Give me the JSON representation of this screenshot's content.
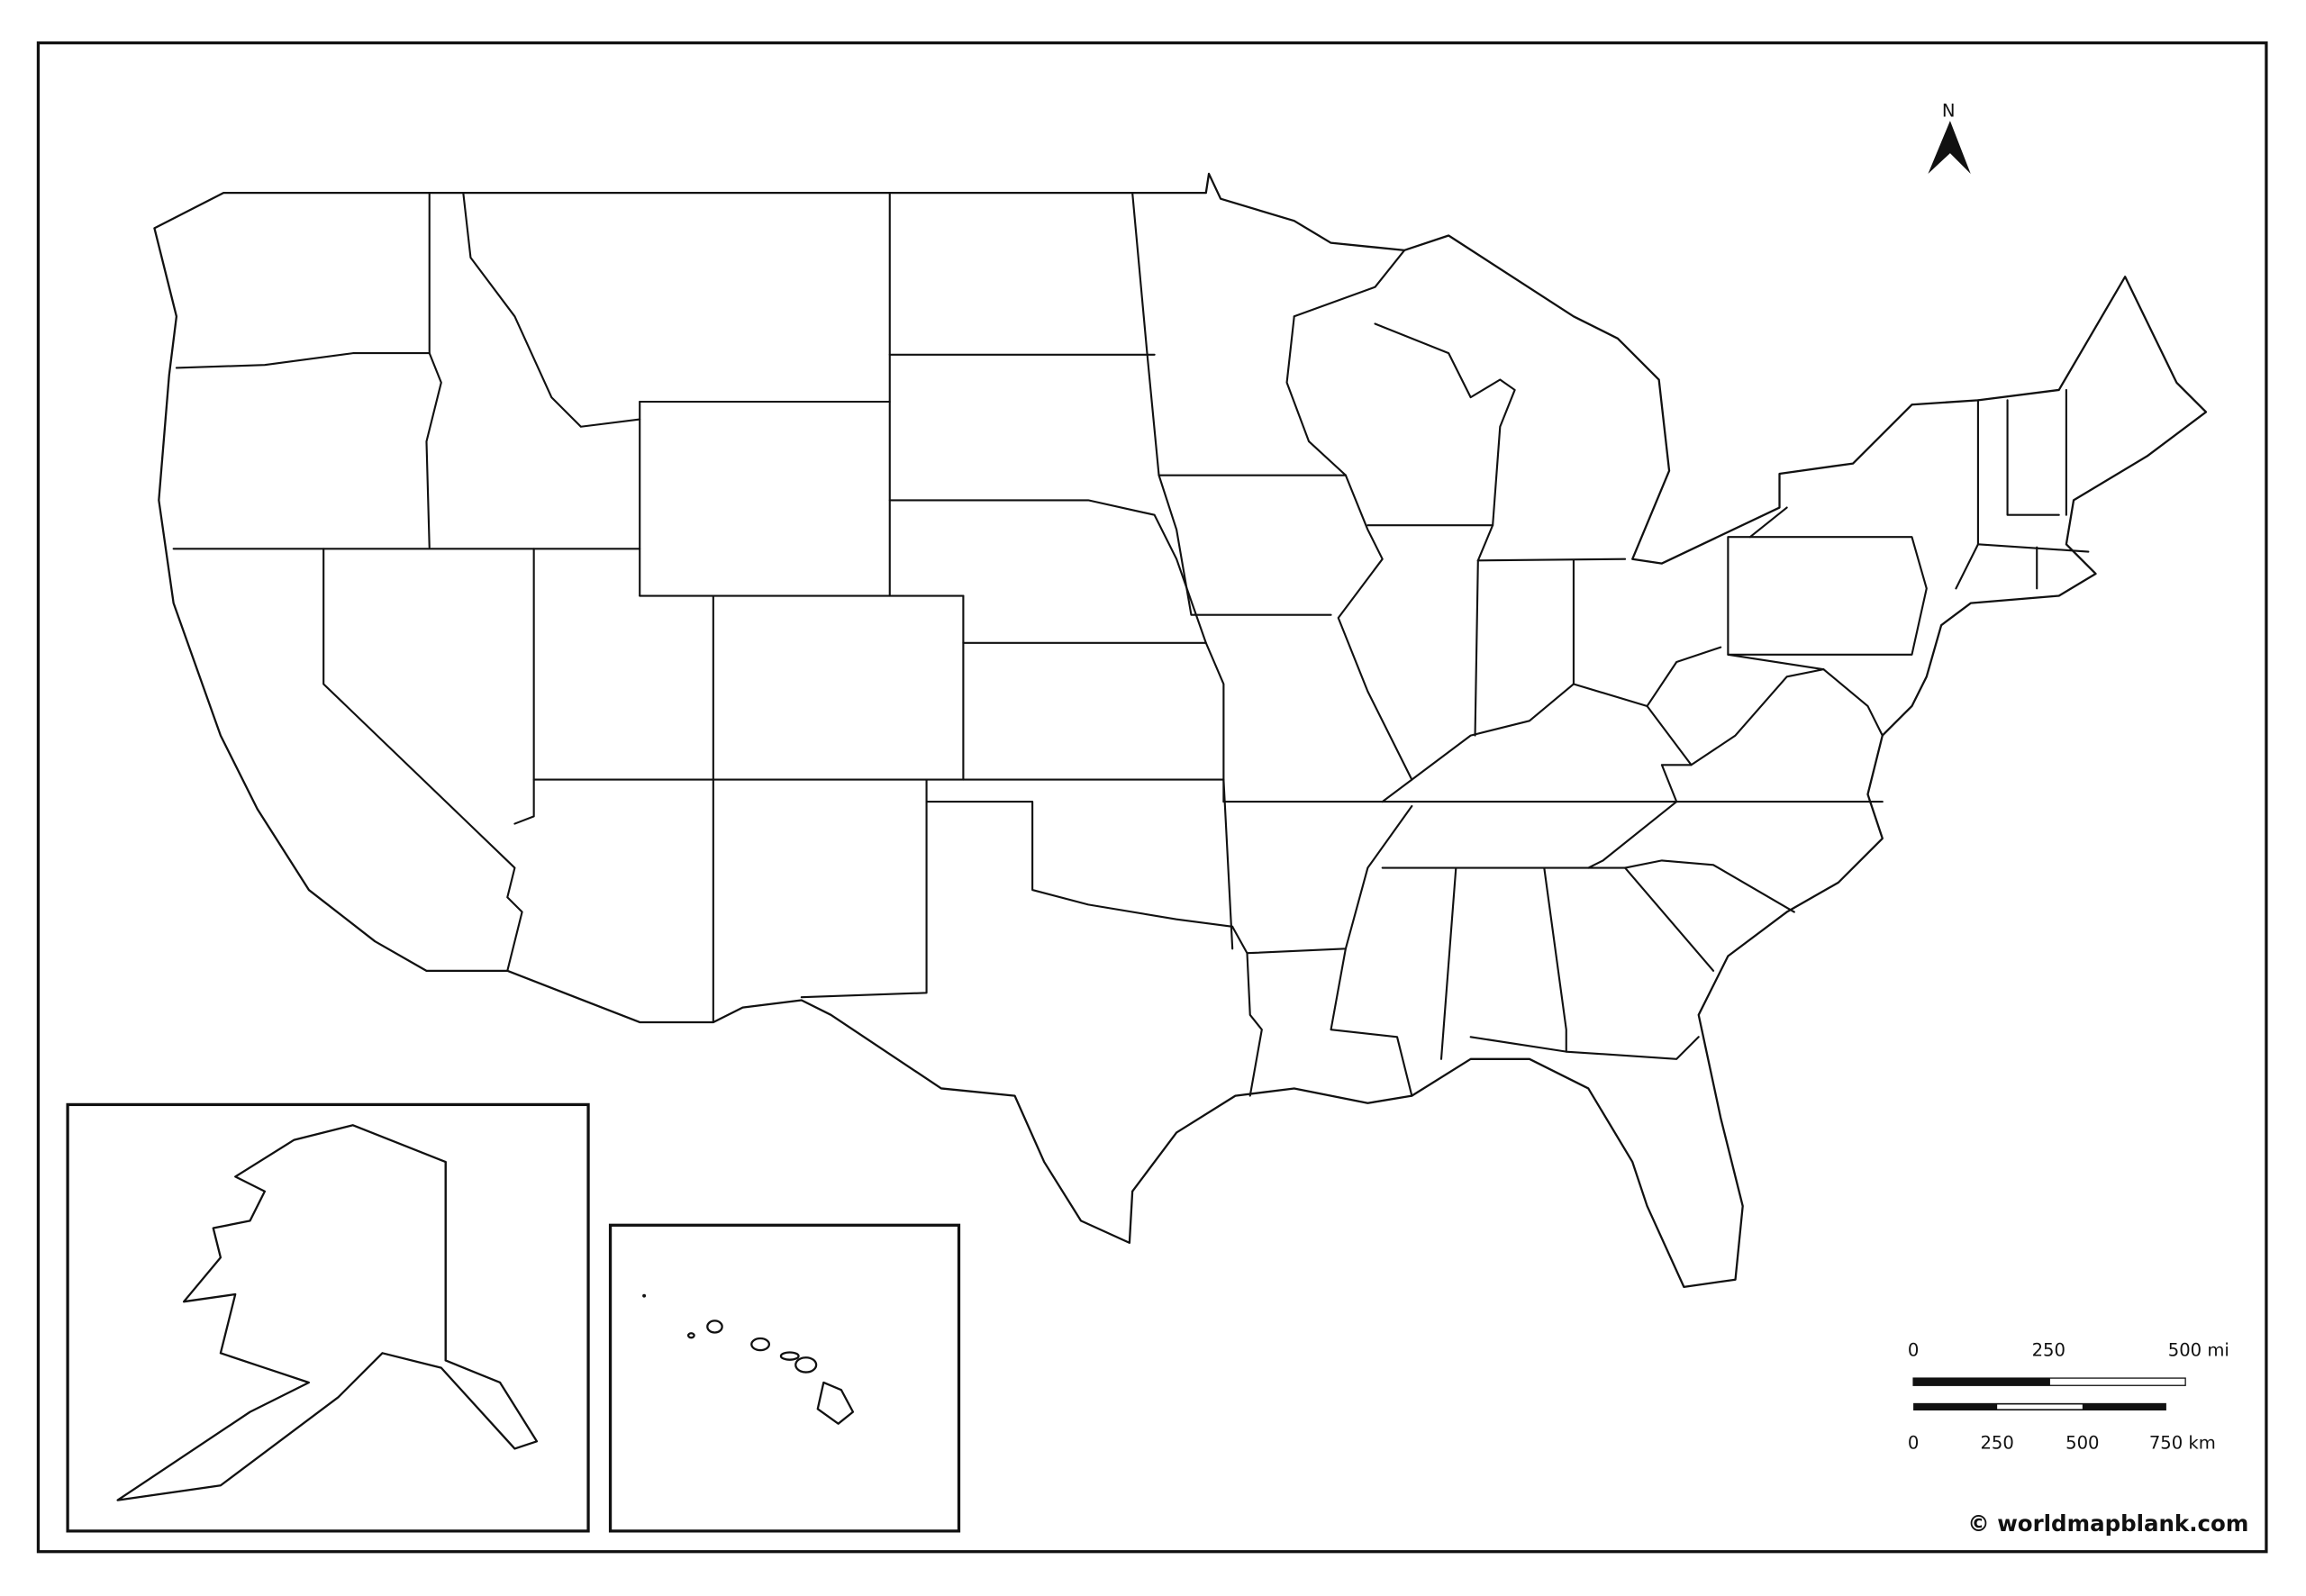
{
  "map": {
    "type": "blank outline map",
    "region": "United States",
    "line_color": "#111111",
    "fill_color": "#ffffff",
    "insets": [
      "alaska",
      "hawaii"
    ]
  },
  "north_arrow": {
    "label": "N",
    "icon": "north-arrow-icon"
  },
  "scale_bar": {
    "miles": {
      "labels": [
        "0",
        "250",
        "500 mi"
      ]
    },
    "kilometers": {
      "labels": [
        "0",
        "250",
        "500",
        "750 km"
      ]
    }
  },
  "copyright": "© worldmapblank.com"
}
